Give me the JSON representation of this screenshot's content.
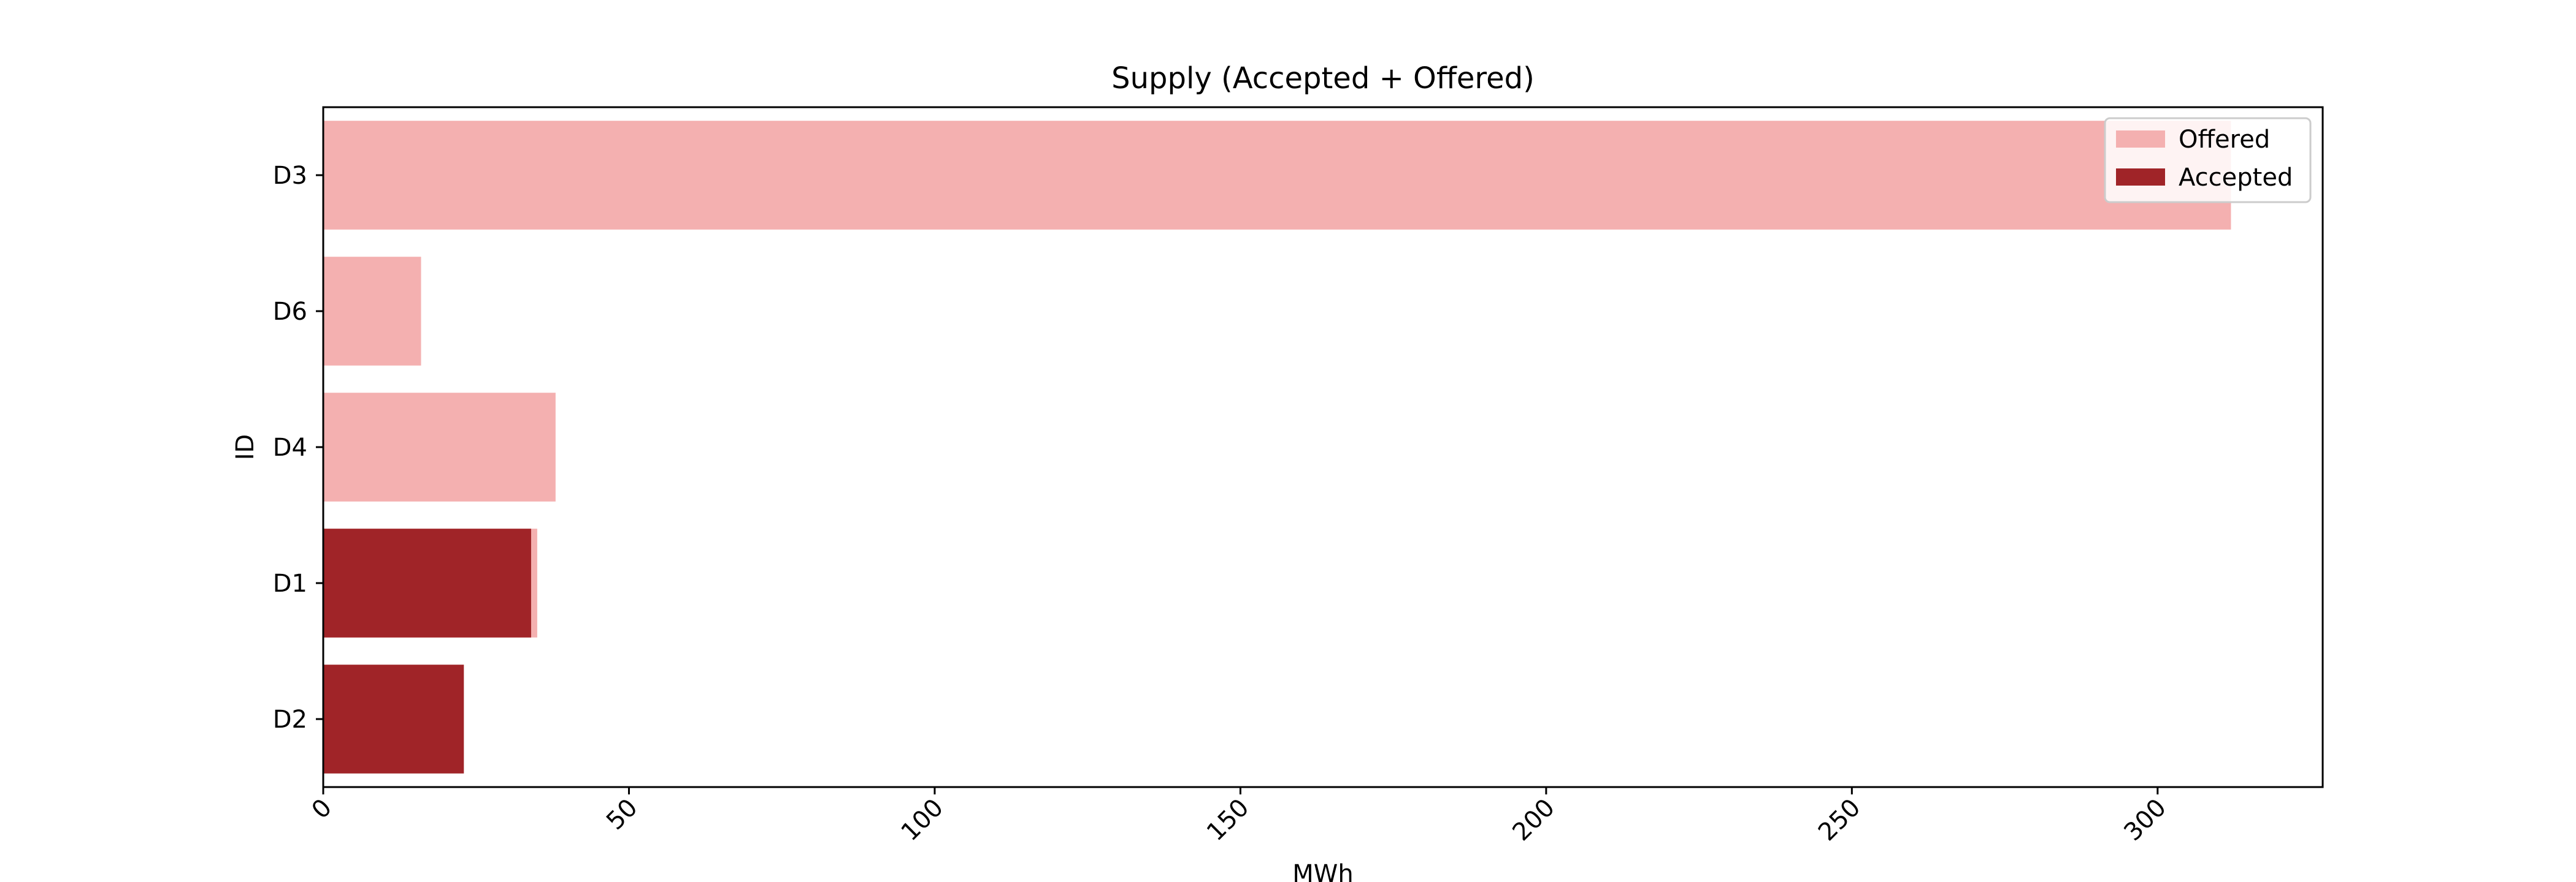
{
  "chart_data": {
    "type": "bar",
    "orientation": "horizontal",
    "stacking": "overlay",
    "title": "Supply (Accepted + Offered)",
    "xlabel": "MWh",
    "ylabel": "ID",
    "categories": [
      "D3",
      "D6",
      "D4",
      "D1",
      "D2"
    ],
    "series": [
      {
        "name": "Offered",
        "color": "#f4b0b0",
        "values": [
          312,
          16,
          38,
          35,
          0
        ]
      },
      {
        "name": "Accepted",
        "color": "#a02428",
        "values": [
          0,
          0,
          0,
          34,
          23
        ]
      }
    ],
    "xlim": [
      0,
      327
    ],
    "xticks": [
      0,
      50,
      100,
      150,
      200,
      250,
      300
    ],
    "xtick_rotation": -45,
    "grid": false,
    "legend_position": "upper right"
  }
}
